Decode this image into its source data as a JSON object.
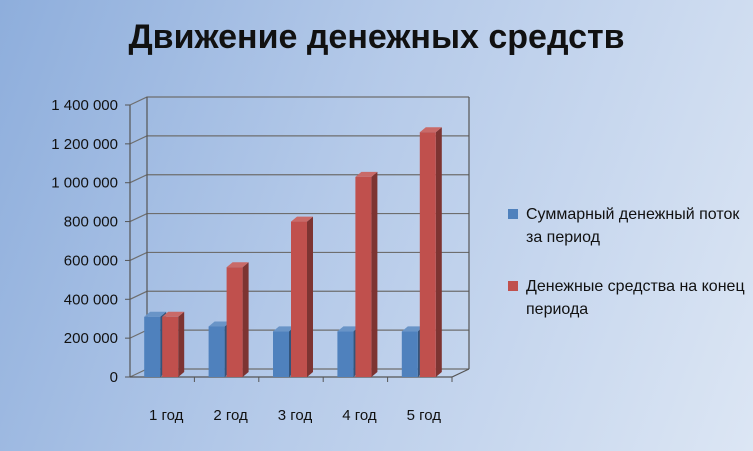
{
  "chart_data": {
    "type": "bar",
    "title": "Движение денежных средств",
    "categories": [
      "1 год",
      "2 год",
      "3 год",
      "4 год",
      "5 год"
    ],
    "y_ticks": [
      "0",
      "200 000",
      "400 000",
      "600 000",
      "800 000",
      "1 000 000",
      "1 200 000",
      "1 400 000"
    ],
    "ylim": [
      0,
      1400000
    ],
    "grid": true,
    "legend_position": "right",
    "series": [
      {
        "name": "Суммарный денежный поток за период",
        "color": "#4f81bd",
        "values": [
          310000,
          260000,
          235000,
          235000,
          235000
        ]
      },
      {
        "name": "Денежные средства на конец периода",
        "color": "#c0504d",
        "values": [
          310000,
          565000,
          800000,
          1030000,
          1260000
        ]
      }
    ]
  }
}
